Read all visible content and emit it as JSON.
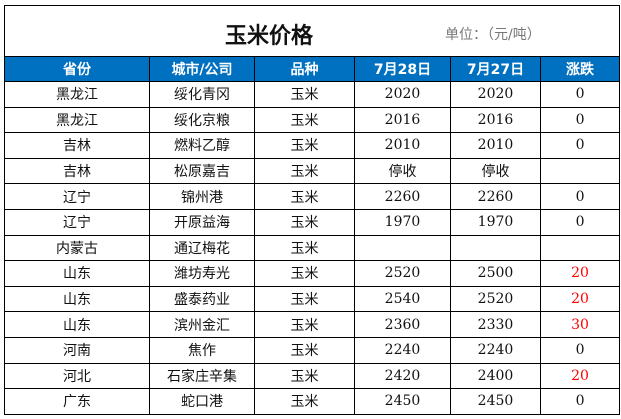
{
  "title": "玉米价格",
  "unit": "单位：（元/吨）",
  "columns": [
    "省份",
    "城市/公司",
    "品种",
    "7月28日",
    "7月27日",
    "涨跌"
  ],
  "colors": {
    "header_bg": "#0070C0",
    "rise": "#FF0000"
  },
  "rows": [
    [
      "黑龙江",
      "绥化青冈",
      "玉米",
      "2020",
      "2020",
      "0"
    ],
    [
      "黑龙江",
      "绥化京粮",
      "玉米",
      "2016",
      "2016",
      "0"
    ],
    [
      "吉林",
      "燃料乙醇",
      "玉米",
      "2010",
      "2010",
      "0"
    ],
    [
      "吉林",
      "松原嘉吉",
      "玉米",
      "停收",
      "停收",
      ""
    ],
    [
      "辽宁",
      "锦州港",
      "玉米",
      "2260",
      "2260",
      "0"
    ],
    [
      "辽宁",
      "开原益海",
      "玉米",
      "1970",
      "1970",
      "0"
    ],
    [
      "内蒙古",
      "通辽梅花",
      "玉米",
      "",
      "",
      ""
    ],
    [
      "山东",
      "潍坊寿光",
      "玉米",
      "2520",
      "2500",
      "20"
    ],
    [
      "山东",
      "盛泰药业",
      "玉米",
      "2540",
      "2520",
      "20"
    ],
    [
      "山东",
      "滨州金汇",
      "玉米",
      "2360",
      "2330",
      "30"
    ],
    [
      "河南",
      "焦作",
      "玉米",
      "2240",
      "2240",
      "0"
    ],
    [
      "河北",
      "石家庄辛集",
      "玉米",
      "2420",
      "2400",
      "20"
    ],
    [
      "广东",
      "蛇口港",
      "玉米",
      "2450",
      "2450",
      "0"
    ]
  ]
}
